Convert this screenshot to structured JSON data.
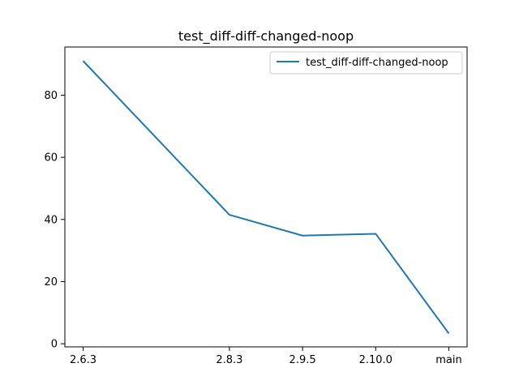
{
  "chart_data": {
    "type": "line",
    "title": "test_diff-diff-changed-noop",
    "xlabel": "",
    "ylabel": "",
    "x_positions": [
      0,
      2,
      3,
      4,
      5
    ],
    "categories": [
      "2.6.3",
      "2.8.3",
      "2.9.5",
      "2.10.0",
      "main"
    ],
    "series": [
      {
        "name": "test_diff-diff-changed-noop",
        "color": "#1f77b4",
        "values": [
          91.0,
          41.5,
          34.8,
          35.4,
          3.3
        ]
      }
    ],
    "y_ticks": [
      0,
      20,
      40,
      60,
      80
    ],
    "ylim": [
      -1.0,
      95.5
    ],
    "xlim": [
      -0.25,
      5.25
    ],
    "grid": false,
    "legend_position": "top-right"
  }
}
